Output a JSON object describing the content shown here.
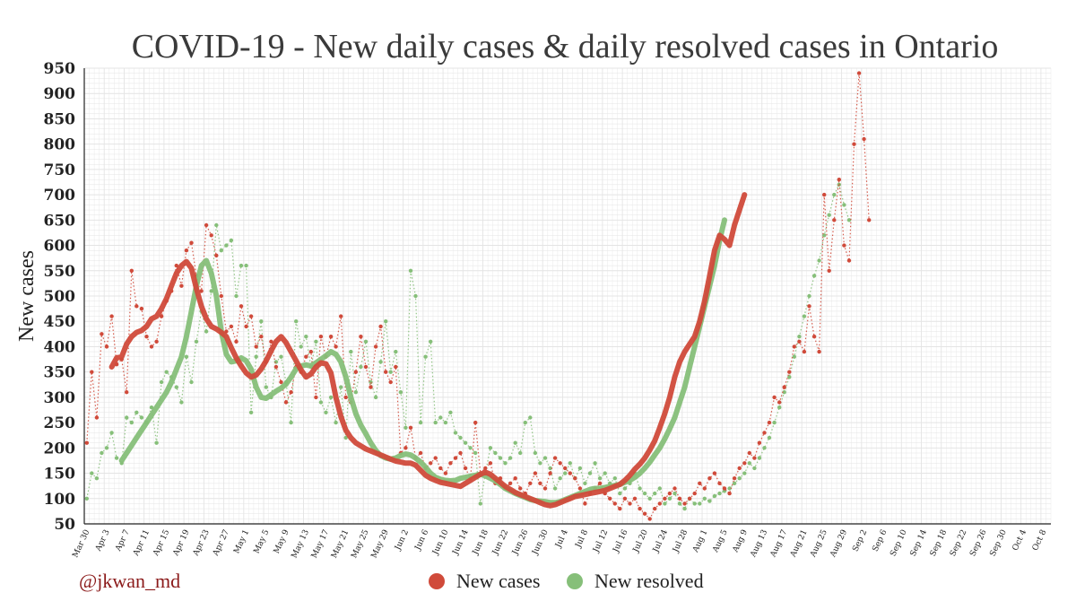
{
  "handle": "@jkwan_md",
  "colors": {
    "new_cases": "#d04a3a",
    "new_resolved": "#86bf79",
    "grid": "#e4e4e4",
    "axis": "#222222"
  },
  "chart_data": {
    "type": "line",
    "title": "COVID-19 - New daily cases & daily resolved cases in Ontario",
    "xlabel": "",
    "ylabel": "New cases",
    "ylim": [
      50,
      950
    ],
    "yticks": [
      50,
      100,
      150,
      200,
      250,
      300,
      350,
      400,
      450,
      500,
      550,
      600,
      650,
      700,
      750,
      800,
      850,
      900,
      950
    ],
    "x_start": "Mar 30",
    "x_tick_labels": [
      "Mar 30",
      "Apr 3",
      "Apr 7",
      "Apr 11",
      "Apr 15",
      "Apr 19",
      "Apr 23",
      "Apr 27",
      "May 1",
      "May 5",
      "May 9",
      "May 13",
      "May 17",
      "May 21",
      "May 25",
      "May 29",
      "Jun 2",
      "Jun 6",
      "Jun 10",
      "Jun 14",
      "Jun 18",
      "Jun 22",
      "Jun 26",
      "Jun 30",
      "Jul 4",
      "Jul 8",
      "Jul 12",
      "Jul 16",
      "Jul 20",
      "Jul 24",
      "Jul 28",
      "Aug 1",
      "Aug 5",
      "Aug 9",
      "Aug 13",
      "Aug 17",
      "Aug 21",
      "Aug 25",
      "Aug 29",
      "Sep 2",
      "Sep 6",
      "Sep 10",
      "Sep 14",
      "Sep 18",
      "Sep 22",
      "Sep 26",
      "Sep 30",
      "Oct 4",
      "Oct 8"
    ],
    "legend": [
      "New cases",
      "New resolved"
    ],
    "legend_position": "bottom-center",
    "grid": true,
    "series": [
      {
        "name": "New cases (daily)",
        "style": "dotted",
        "color_key": "new_cases",
        "start_day": 0,
        "values": [
          210,
          350,
          260,
          425,
          400,
          460,
          365,
          375,
          310,
          550,
          480,
          475,
          420,
          400,
          410,
          460,
          490,
          510,
          560,
          520,
          590,
          605,
          540,
          510,
          640,
          620,
          580,
          500,
          430,
          440,
          410,
          480,
          440,
          460,
          400,
          420,
          370,
          410,
          360,
          330,
          290,
          310,
          360,
          350,
          380,
          390,
          300,
          420,
          380,
          420,
          400,
          460,
          300,
          290,
          350,
          420,
          360,
          320,
          400,
          440,
          350,
          330,
          360,
          190,
          200,
          240,
          180,
          190,
          160,
          170,
          180,
          160,
          150,
          170,
          180,
          190,
          160,
          140,
          250,
          150,
          160,
          170,
          130,
          140,
          120,
          130,
          140,
          120,
          110,
          130,
          150,
          130,
          120,
          150,
          180,
          170,
          160,
          150,
          140,
          120,
          90,
          110,
          120,
          130,
          110,
          100,
          90,
          80,
          100,
          90,
          100,
          80,
          70,
          60,
          80,
          90,
          100,
          110,
          120,
          100,
          90,
          100,
          110,
          130,
          120,
          140,
          150,
          130,
          120,
          110,
          140,
          160,
          170,
          190,
          180,
          210,
          230,
          250,
          300,
          290,
          320,
          350,
          400,
          410,
          390,
          480,
          420,
          390,
          700,
          550,
          650,
          730,
          600,
          570,
          800,
          940,
          810,
          650
        ]
      },
      {
        "name": "New cases (7-day average)",
        "style": "thick",
        "color_key": "new_cases",
        "start_day": 5,
        "values": [
          360,
          378,
          380,
          405,
          420,
          428,
          432,
          440,
          455,
          460,
          475,
          495,
          520,
          545,
          560,
          568,
          555,
          515,
          480,
          455,
          440,
          435,
          428,
          420,
          398,
          378,
          362,
          348,
          340,
          344,
          356,
          372,
          392,
          410,
          420,
          408,
          390,
          372,
          354,
          340,
          346,
          360,
          368,
          366,
          348,
          300,
          262,
          235,
          220,
          210,
          204,
          198,
          194,
          190,
          186,
          182,
          178,
          174,
          172,
          170,
          170,
          166,
          156,
          146,
          140,
          136,
          132,
          130,
          128,
          126,
          124,
          130,
          136,
          142,
          148,
          152,
          148,
          140,
          132,
          124,
          118,
          112,
          108,
          104,
          100,
          96,
          92,
          88,
          86,
          88,
          92,
          96,
          100,
          104,
          106,
          108,
          110,
          112,
          114,
          116,
          120,
          124,
          128,
          136,
          146,
          158,
          168,
          180,
          196,
          214,
          240,
          268,
          300,
          340,
          370,
          390,
          405,
          420,
          450,
          490,
          540,
          590,
          620,
          612,
          600,
          640,
          670,
          700
        ]
      },
      {
        "name": "New resolved (daily)",
        "style": "dotted",
        "color_key": "new_resolved",
        "start_day": 0,
        "values": [
          100,
          150,
          140,
          190,
          200,
          230,
          180,
          170,
          260,
          250,
          270,
          260,
          250,
          280,
          210,
          330,
          350,
          340,
          320,
          290,
          380,
          330,
          410,
          470,
          430,
          510,
          640,
          590,
          600,
          610,
          500,
          560,
          560,
          270,
          380,
          450,
          320,
          300,
          370,
          380,
          330,
          250,
          450,
          400,
          420,
          360,
          410,
          290,
          270,
          300,
          250,
          320,
          220,
          390,
          310,
          360,
          410,
          330,
          300,
          370,
          450,
          350,
          390,
          310,
          240,
          550,
          500,
          250,
          380,
          410,
          250,
          260,
          250,
          270,
          230,
          220,
          210,
          200,
          190,
          90,
          150,
          200,
          190,
          180,
          170,
          180,
          210,
          190,
          250,
          260,
          190,
          170,
          180,
          160,
          120,
          140,
          150,
          170,
          140,
          160,
          130,
          150,
          170,
          140,
          150,
          130,
          140,
          110,
          120,
          130,
          150,
          120,
          110,
          100,
          110,
          120,
          90,
          100,
          110,
          90,
          80,
          100,
          90,
          90,
          100,
          95,
          105,
          110,
          115,
          120,
          130,
          140,
          150,
          170,
          160,
          180,
          200,
          220,
          250,
          280,
          310,
          340,
          380,
          420,
          460,
          500,
          540,
          570,
          620,
          660,
          700,
          720,
          680,
          650
        ]
      },
      {
        "name": "New resolved (7-day average)",
        "style": "thick",
        "color_key": "new_resolved",
        "start_day": 7,
        "values": [
          175,
          190,
          205,
          220,
          235,
          250,
          265,
          280,
          295,
          310,
          330,
          355,
          380,
          420,
          470,
          520,
          560,
          570,
          545,
          500,
          430,
          385,
          370,
          372,
          378,
          372,
          355,
          320,
          300,
          298,
          305,
          312,
          318,
          326,
          340,
          356,
          362,
          364,
          362,
          368,
          375,
          382,
          390,
          385,
          370,
          340,
          300,
          268,
          245,
          228,
          210,
          195,
          185,
          180,
          178,
          180,
          185,
          188,
          186,
          180,
          172,
          162,
          150,
          142,
          138,
          136,
          135,
          136,
          140,
          142,
          144,
          146,
          148,
          145,
          140,
          135,
          128,
          120,
          115,
          110,
          106,
          102,
          98,
          96,
          95,
          94,
          92,
          92,
          94,
          98,
          102,
          106,
          110,
          114,
          118,
          120,
          120,
          122,
          124,
          126,
          128,
          132,
          136,
          142,
          150,
          160,
          172,
          186,
          200,
          218,
          238,
          260,
          290,
          320,
          360,
          400,
          440,
          480,
          520,
          560,
          610,
          650
        ]
      }
    ]
  }
}
